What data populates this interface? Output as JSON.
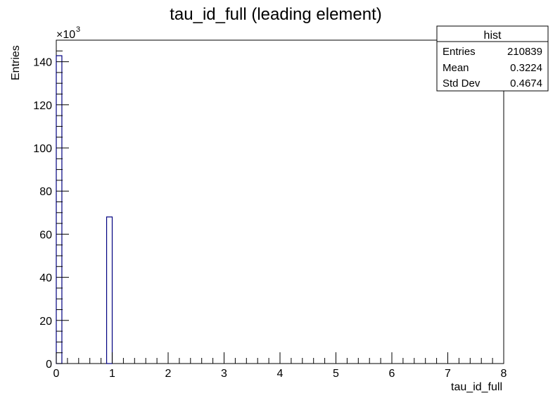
{
  "chart_data": {
    "type": "bar",
    "title": "tau_id_full (leading element)",
    "xlabel": "tau_id_full",
    "ylabel": "Entries",
    "y_exponent_base": "×10",
    "y_exponent_power": "3",
    "xlim": [
      0,
      8
    ],
    "ylim": [
      0,
      150
    ],
    "x_ticks": [
      0,
      1,
      2,
      3,
      4,
      5,
      6,
      7,
      8
    ],
    "y_ticks": [
      0,
      20,
      40,
      60,
      80,
      100,
      120,
      140
    ],
    "bin_width": 0.1,
    "bins": [
      {
        "x0": 0.0,
        "x1": 0.1,
        "value": 142.8
      },
      {
        "x0": 0.9,
        "x1": 1.0,
        "value": 68.0
      }
    ],
    "bar_color": "#000080",
    "grid": false,
    "legend": "none",
    "stats_box": {
      "title": "hist",
      "rows": [
        {
          "label": "Entries",
          "value": "210839"
        },
        {
          "label": "Mean",
          "value": "0.3224"
        },
        {
          "label": "Std Dev",
          "value": "0.4674"
        }
      ]
    }
  }
}
